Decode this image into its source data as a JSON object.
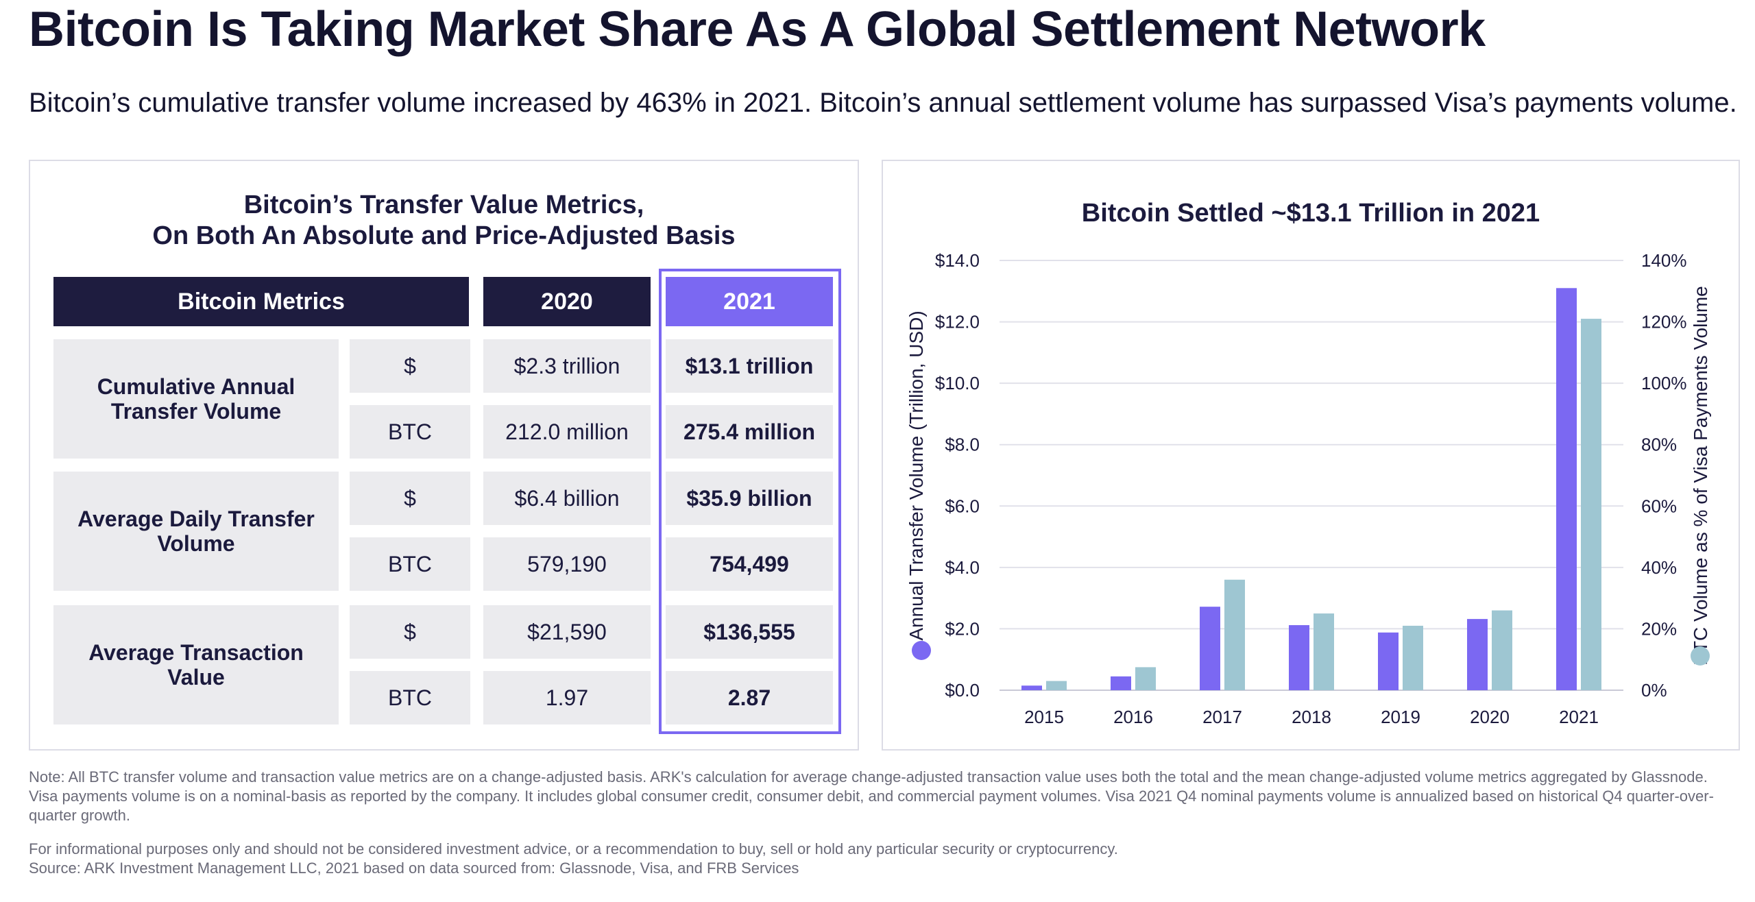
{
  "title": "Bitcoin Is Taking Market Share As A Global Settlement Network",
  "subtitle": "Bitcoin’s cumulative transfer volume increased by 463% in 2021. Bitcoin’s annual settlement volume has surpassed Visa’s payments volume.",
  "table": {
    "title_line1": "Bitcoin’s Transfer Value Metrics,",
    "title_line2": "On Both An Absolute and Price-Adjusted Basis",
    "headers": {
      "metrics": "Bitcoin Metrics",
      "y2020": "2020",
      "y2021": "2021"
    },
    "groups": [
      {
        "label": "Cumulative Annual Transfer Volume",
        "rows": [
          {
            "unit": "$",
            "v2020": "$2.3 trillion",
            "v2021": "$13.1 trillion"
          },
          {
            "unit": "BTC",
            "v2020": "212.0 million",
            "v2021": "275.4 million"
          }
        ]
      },
      {
        "label": "Average Daily Transfer Volume",
        "rows": [
          {
            "unit": "$",
            "v2020": "$6.4 billion",
            "v2021": "$35.9 billion"
          },
          {
            "unit": "BTC",
            "v2020": "579,190",
            "v2021": "754,499"
          }
        ]
      },
      {
        "label": "Average Transaction Value",
        "rows": [
          {
            "unit": "$",
            "v2020": "$21,590",
            "v2021": "$136,555"
          },
          {
            "unit": "BTC",
            "v2020": "1.97",
            "v2021": "2.87"
          }
        ]
      }
    ]
  },
  "chart_data": {
    "type": "bar",
    "title": "Bitcoin Settled ~$13.1 Trillion in 2021",
    "categories": [
      "2015",
      "2016",
      "2017",
      "2018",
      "2019",
      "2020",
      "2021"
    ],
    "series": [
      {
        "name": "Annual Transfer Volume (Trillion, USD)",
        "axis": "left",
        "color": "#7b68f2",
        "values": [
          0.15,
          0.45,
          2.72,
          2.12,
          1.88,
          2.32,
          13.1
        ]
      },
      {
        "name": "BTC Volume as % of Visa Payments Volume",
        "axis": "right",
        "color": "#9ec6d2",
        "values": [
          3,
          7.5,
          36,
          25,
          21,
          26,
          121
        ]
      }
    ],
    "ylabel": "Annual Transfer Volume (Trillion, USD)",
    "y2label": "BTC Volume as % of Visa Payments Volume",
    "ylim": [
      0,
      14
    ],
    "y2lim": [
      0,
      140
    ],
    "yticks": [
      "$0.0",
      "$2.0",
      "$4.0",
      "$6.0",
      "$8.0",
      "$10.0",
      "$12.0",
      "$14.0"
    ],
    "y2ticks": [
      "0%",
      "20%",
      "40%",
      "60%",
      "80%",
      "100%",
      "120%",
      "140%"
    ],
    "grid": true
  },
  "notes": {
    "note": "Note: All BTC transfer volume and transaction value metrics are on a change-adjusted basis. ARK's calculation for average change-adjusted transaction value uses both the total and the mean change-adjusted volume metrics aggregated by Glassnode. Visa payments volume is on a nominal-basis as reported by the company. It includes global consumer credit, consumer debit, and commercial payment volumes. Visa 2021 Q4 nominal payments volume is annualized based on historical Q4 quarter-over-quarter growth.",
    "disclaimer": "For informational purposes only and should not be considered investment advice, or a recommendation to buy, sell or hold any particular security or cryptocurrency.",
    "source": "Source: ARK Investment Management LLC, 2021 based on data sourced from: Glassnode, Visa, and FRB Services"
  }
}
